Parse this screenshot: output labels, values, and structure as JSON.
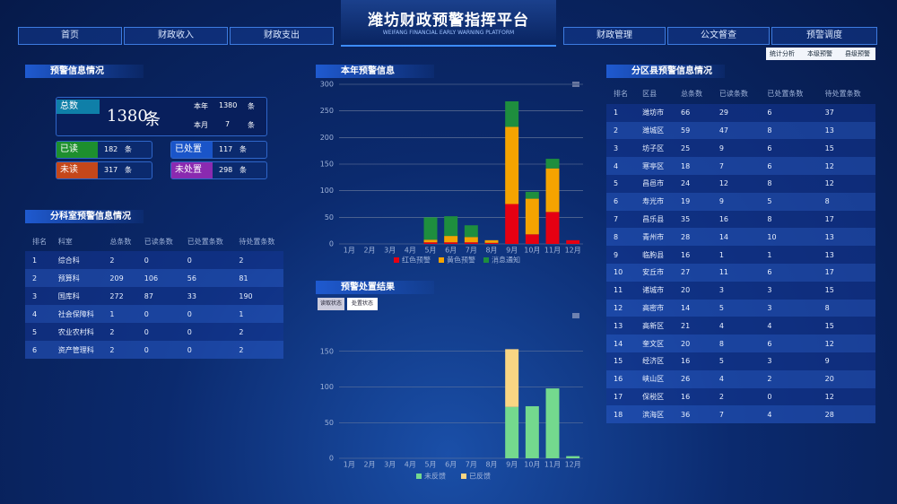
{
  "header": {
    "title": "潍坊财政预警指挥平台",
    "subtitle": "WEIFANG FINANCIAL EARLY WARNING PLATFORM",
    "nav_left": [
      "首页",
      "财政收入",
      "财政支出"
    ],
    "nav_right": [
      "财政管理",
      "公文督查",
      "预警调度"
    ],
    "sub_tabs": [
      "统计分析",
      "本级预警",
      "县级预警"
    ]
  },
  "summary": {
    "title": "预警信息情况",
    "total": {
      "label": "总数",
      "value": 1380,
      "unit": "条"
    },
    "year": {
      "label": "本年",
      "value": 1380,
      "unit": "条"
    },
    "month": {
      "label": "本月",
      "value": 7,
      "unit": "条"
    },
    "read": {
      "label": "已读",
      "value": 182,
      "unit": "条"
    },
    "handled": {
      "label": "已处置",
      "value": 117,
      "unit": "条"
    },
    "unread": {
      "label": "未读",
      "value": 317,
      "unit": "条"
    },
    "unhandled": {
      "label": "未处置",
      "value": 298,
      "unit": "条"
    }
  },
  "dept_table": {
    "title": "分科室预警信息情况",
    "columns": [
      "排名",
      "科室",
      "总条数",
      "已读条数",
      "已处置条数",
      "待处置条数"
    ],
    "rows": [
      [
        1,
        "综合科",
        2,
        0,
        0,
        2
      ],
      [
        2,
        "预算科",
        209,
        106,
        56,
        81
      ],
      [
        3,
        "国库科",
        272,
        87,
        33,
        190
      ],
      [
        4,
        "社会保障科",
        1,
        0,
        0,
        1
      ],
      [
        5,
        "农业农村科",
        2,
        0,
        0,
        2
      ],
      [
        6,
        "资产管理科",
        2,
        0,
        0,
        2
      ]
    ]
  },
  "chart_data": [
    {
      "type": "bar",
      "stacked": true,
      "title": "本年预警信息",
      "categories": [
        "1月",
        "2月",
        "3月",
        "4月",
        "5月",
        "6月",
        "7月",
        "8月",
        "9月",
        "10月",
        "11月",
        "12月"
      ],
      "series": [
        {
          "name": "红色预警",
          "color": "#e60012",
          "values": [
            0,
            0,
            0,
            0,
            3,
            3,
            3,
            2,
            75,
            18,
            60,
            7
          ]
        },
        {
          "name": "黄色预警",
          "color": "#f5a300",
          "values": [
            0,
            0,
            0,
            0,
            5,
            12,
            10,
            5,
            145,
            67,
            82,
            0
          ]
        },
        {
          "name": "消息通知",
          "color": "#1e8e3e",
          "values": [
            0,
            0,
            0,
            0,
            42,
            37,
            22,
            0,
            48,
            13,
            18,
            0
          ]
        }
      ],
      "ylim": [
        0,
        300
      ],
      "yticks": [
        0,
        50,
        100,
        150,
        200,
        250,
        300
      ],
      "grid": true
    },
    {
      "type": "bar",
      "stacked": true,
      "title": "预警处置结果",
      "toggles": [
        "读取状态",
        "处置状态"
      ],
      "categories": [
        "1月",
        "2月",
        "3月",
        "4月",
        "5月",
        "6月",
        "7月",
        "8月",
        "9月",
        "10月",
        "11月",
        "12月"
      ],
      "series": [
        {
          "name": "未反馈",
          "color": "#74d98e",
          "values": [
            0,
            0,
            0,
            0,
            0,
            0,
            0,
            0,
            72,
            73,
            98,
            3
          ]
        },
        {
          "name": "已反馈",
          "color": "#f9d583",
          "values": [
            0,
            0,
            0,
            0,
            0,
            0,
            0,
            0,
            81,
            0,
            0,
            0
          ]
        }
      ],
      "ylim": [
        0,
        200
      ],
      "yticks": [
        0,
        50,
        100,
        150
      ],
      "grid": true
    }
  ],
  "county_table": {
    "title": "分区县预警信息情况",
    "columns": [
      "排名",
      "区县",
      "总条数",
      "已读条数",
      "已处置条数",
      "待处置条数"
    ],
    "rows": [
      [
        1,
        "潍坊市",
        66,
        29,
        6,
        37
      ],
      [
        2,
        "潍城区",
        59,
        47,
        8,
        13
      ],
      [
        3,
        "坊子区",
        25,
        9,
        6,
        15
      ],
      [
        4,
        "寒亭区",
        18,
        7,
        6,
        12
      ],
      [
        5,
        "昌邑市",
        24,
        12,
        8,
        12
      ],
      [
        6,
        "寿光市",
        19,
        9,
        5,
        8
      ],
      [
        7,
        "昌乐县",
        35,
        16,
        8,
        17
      ],
      [
        8,
        "青州市",
        28,
        14,
        10,
        13
      ],
      [
        9,
        "临朐县",
        16,
        1,
        1,
        13
      ],
      [
        10,
        "安丘市",
        27,
        11,
        6,
        17
      ],
      [
        11,
        "诸城市",
        20,
        3,
        3,
        15
      ],
      [
        12,
        "高密市",
        14,
        5,
        3,
        8
      ],
      [
        13,
        "高新区",
        21,
        4,
        4,
        15
      ],
      [
        14,
        "奎文区",
        20,
        8,
        6,
        12
      ],
      [
        15,
        "经济区",
        16,
        5,
        3,
        9
      ],
      [
        16,
        "峡山区",
        26,
        4,
        2,
        20
      ],
      [
        17,
        "保税区",
        16,
        2,
        0,
        12
      ],
      [
        18,
        "滨海区",
        36,
        7,
        4,
        28
      ]
    ]
  }
}
